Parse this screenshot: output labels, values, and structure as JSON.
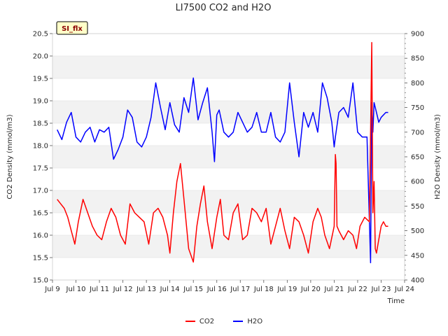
{
  "chart_data": {
    "type": "line",
    "title": "LI7500 CO2 and H2O",
    "xlabel": "Time",
    "ylabel_left": "CO2 Density (mmol/m3)",
    "ylabel_right": "H2O Density (mmol/m3)",
    "badge": "SI_flx",
    "xlim": [
      9,
      24
    ],
    "xticks": [
      {
        "v": 9,
        "label": "Jul 9"
      },
      {
        "v": 10,
        "label": "Jul 10"
      },
      {
        "v": 11,
        "label": "Jul 11"
      },
      {
        "v": 12,
        "label": "Jul 12"
      },
      {
        "v": 13,
        "label": "Jul 13"
      },
      {
        "v": 14,
        "label": "Jul 14"
      },
      {
        "v": 15,
        "label": "Jul 15"
      },
      {
        "v": 16,
        "label": "Jul 16"
      },
      {
        "v": 17,
        "label": "Jul 17"
      },
      {
        "v": 18,
        "label": "Jul 18"
      },
      {
        "v": 19,
        "label": "Jul 19"
      },
      {
        "v": 20,
        "label": "Jul 20"
      },
      {
        "v": 21,
        "label": "Jul 21"
      },
      {
        "v": 22,
        "label": "Jul 22"
      },
      {
        "v": 23,
        "label": "Jul 23"
      },
      {
        "v": 24,
        "label": "Jul 24"
      }
    ],
    "ylim_left": [
      15.0,
      20.5
    ],
    "yticks_left": [
      "15.0",
      "15.5",
      "16.0",
      "16.5",
      "17.0",
      "17.5",
      "18.0",
      "18.5",
      "19.0",
      "19.5",
      "20.0",
      "20.5"
    ],
    "ylim_right": [
      400,
      900
    ],
    "yticks_right": [
      "400",
      "450",
      "500",
      "550",
      "600",
      "650",
      "700",
      "750",
      "800",
      "850",
      "900"
    ],
    "grid": true,
    "legend_position": "bottom-center",
    "series": [
      {
        "name": "CO2",
        "axis": "left",
        "color": "#ff0000",
        "x": [
          9.2,
          9.35,
          9.5,
          9.65,
          9.8,
          9.95,
          10.1,
          10.3,
          10.5,
          10.7,
          10.9,
          11.1,
          11.3,
          11.5,
          11.7,
          11.9,
          12.1,
          12.3,
          12.5,
          12.7,
          12.9,
          13.1,
          13.3,
          13.5,
          13.7,
          13.9,
          14.0,
          14.15,
          14.3,
          14.45,
          14.6,
          14.8,
          15.0,
          15.15,
          15.3,
          15.45,
          15.6,
          15.8,
          16.0,
          16.15,
          16.3,
          16.5,
          16.7,
          16.9,
          17.1,
          17.3,
          17.5,
          17.7,
          17.9,
          18.1,
          18.3,
          18.5,
          18.7,
          18.9,
          19.1,
          19.3,
          19.5,
          19.7,
          19.9,
          20.1,
          20.3,
          20.45,
          20.6,
          20.8,
          21.0,
          21.05,
          21.08,
          21.12,
          21.2,
          21.4,
          21.6,
          21.8,
          21.95,
          22.1,
          22.3,
          22.5,
          22.6,
          22.65,
          22.7,
          22.75,
          22.8,
          22.9,
          23.0,
          23.1,
          23.2,
          23.3
        ],
        "y": [
          16.8,
          16.7,
          16.6,
          16.4,
          16.1,
          15.8,
          16.3,
          16.8,
          16.5,
          16.2,
          16.0,
          15.9,
          16.3,
          16.6,
          16.4,
          16.0,
          15.8,
          16.7,
          16.5,
          16.4,
          16.3,
          15.8,
          16.5,
          16.6,
          16.4,
          16.0,
          15.6,
          16.5,
          17.2,
          17.6,
          16.8,
          15.7,
          15.4,
          16.2,
          16.7,
          17.1,
          16.3,
          15.7,
          16.4,
          16.8,
          16.0,
          15.9,
          16.5,
          16.7,
          15.9,
          16.0,
          16.6,
          16.5,
          16.3,
          16.6,
          15.8,
          16.2,
          16.6,
          16.1,
          15.7,
          16.4,
          16.3,
          16.0,
          15.6,
          16.3,
          16.6,
          16.4,
          16.0,
          15.7,
          16.2,
          17.8,
          17.6,
          16.2,
          16.1,
          15.9,
          16.1,
          16.0,
          15.7,
          16.2,
          16.4,
          16.3,
          20.3,
          16.5,
          17.2,
          15.7,
          15.6,
          15.9,
          16.2,
          16.3,
          16.2,
          16.2
        ]
      },
      {
        "name": "H2O",
        "axis": "right",
        "color": "#0000ff",
        "x": [
          9.2,
          9.4,
          9.6,
          9.8,
          10.0,
          10.2,
          10.4,
          10.6,
          10.8,
          11.0,
          11.2,
          11.4,
          11.6,
          11.8,
          12.0,
          12.2,
          12.4,
          12.6,
          12.8,
          13.0,
          13.2,
          13.4,
          13.6,
          13.8,
          14.0,
          14.2,
          14.4,
          14.6,
          14.8,
          15.0,
          15.2,
          15.4,
          15.6,
          15.8,
          15.9,
          16.0,
          16.1,
          16.3,
          16.5,
          16.7,
          16.9,
          17.1,
          17.3,
          17.5,
          17.7,
          17.9,
          18.1,
          18.3,
          18.5,
          18.7,
          18.9,
          19.1,
          19.3,
          19.5,
          19.7,
          19.9,
          20.1,
          20.3,
          20.5,
          20.7,
          20.9,
          21.0,
          21.05,
          21.2,
          21.4,
          21.6,
          21.8,
          22.0,
          22.2,
          22.4,
          22.55,
          22.6,
          22.65,
          22.7,
          22.8,
          22.9,
          23.0,
          23.2,
          23.3
        ],
        "y": [
          705,
          685,
          720,
          740,
          690,
          680,
          700,
          710,
          680,
          705,
          700,
          710,
          645,
          665,
          690,
          745,
          730,
          680,
          670,
          690,
          730,
          800,
          750,
          705,
          760,
          715,
          700,
          770,
          740,
          810,
          725,
          760,
          790,
          700,
          640,
          735,
          745,
          700,
          690,
          700,
          740,
          720,
          700,
          710,
          740,
          700,
          700,
          740,
          690,
          680,
          700,
          800,
          720,
          650,
          740,
          710,
          740,
          700,
          800,
          770,
          720,
          670,
          690,
          740,
          750,
          730,
          800,
          700,
          690,
          690,
          435,
          760,
          700,
          760,
          740,
          720,
          730,
          740,
          740
        ]
      }
    ]
  }
}
